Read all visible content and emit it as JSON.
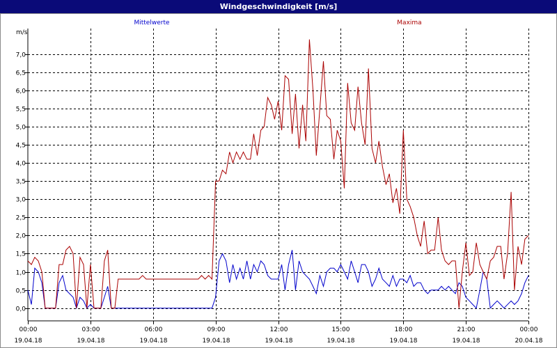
{
  "window": {
    "title": "Windgeschwindigkeit [m/s]"
  },
  "chart_data": {
    "type": "line",
    "ylabel": "m/s",
    "ylim": [
      -0.35,
      7.7
    ],
    "yticks": [
      "0,0",
      "0,5",
      "1,0",
      "1,5",
      "2,0",
      "2,5",
      "3,0",
      "3,5",
      "4,0",
      "4,5",
      "5,0",
      "5,5",
      "6,0",
      "6,5",
      "7,0"
    ],
    "xlim": [
      0,
      24
    ],
    "xticks": [
      {
        "time": "00:00",
        "date": "19.04.18"
      },
      {
        "time": "03:00",
        "date": "19.04.18"
      },
      {
        "time": "06:00",
        "date": "19.04.18"
      },
      {
        "time": "09:00",
        "date": "19.04.18"
      },
      {
        "time": "12:00",
        "date": "19.04.18"
      },
      {
        "time": "15:00",
        "date": "19.04.18"
      },
      {
        "time": "18:00",
        "date": "19.04.18"
      },
      {
        "time": "21:00",
        "date": "19.04.18"
      },
      {
        "time": "00:00",
        "date": "20.04.18"
      }
    ],
    "grid": true,
    "series": [
      {
        "name": "Mittelwerte",
        "color": "#0000cc",
        "points": [
          [
            0,
            0.5
          ],
          [
            0.17,
            0.1
          ],
          [
            0.33,
            1.1
          ],
          [
            0.5,
            1.0
          ],
          [
            0.67,
            0.7
          ],
          [
            0.83,
            0
          ],
          [
            1.33,
            0
          ],
          [
            1.5,
            0.7
          ],
          [
            1.67,
            0.9
          ],
          [
            1.83,
            0.5
          ],
          [
            2.17,
            0.3
          ],
          [
            2.33,
            0
          ],
          [
            2.5,
            0.3
          ],
          [
            2.67,
            0.2
          ],
          [
            2.83,
            0
          ],
          [
            3,
            0.1
          ],
          [
            3.17,
            0
          ],
          [
            3.5,
            0
          ],
          [
            3.67,
            0.3
          ],
          [
            3.83,
            0.6
          ],
          [
            4,
            0
          ],
          [
            4.17,
            0
          ],
          [
            8.83,
            0
          ],
          [
            9,
            0.3
          ],
          [
            9.17,
            1.3
          ],
          [
            9.33,
            1.5
          ],
          [
            9.5,
            1.3
          ],
          [
            9.67,
            0.7
          ],
          [
            9.83,
            1.2
          ],
          [
            10,
            0.8
          ],
          [
            10.17,
            1.1
          ],
          [
            10.33,
            0.8
          ],
          [
            10.5,
            1.3
          ],
          [
            10.67,
            0.8
          ],
          [
            10.83,
            1.2
          ],
          [
            11,
            1.0
          ],
          [
            11.17,
            1.3
          ],
          [
            11.33,
            1.2
          ],
          [
            11.5,
            0.9
          ],
          [
            11.67,
            0.8
          ],
          [
            12,
            0.8
          ],
          [
            12.17,
            1.2
          ],
          [
            12.33,
            0.5
          ],
          [
            12.5,
            1.2
          ],
          [
            12.67,
            1.6
          ],
          [
            12.83,
            0.5
          ],
          [
            13,
            1.3
          ],
          [
            13.17,
            1.0
          ],
          [
            13.33,
            0.9
          ],
          [
            13.5,
            0.8
          ],
          [
            13.67,
            0.6
          ],
          [
            13.83,
            0.4
          ],
          [
            14,
            0.9
          ],
          [
            14.17,
            0.6
          ],
          [
            14.33,
            1.0
          ],
          [
            14.5,
            1.1
          ],
          [
            14.67,
            1.1
          ],
          [
            14.83,
            1.0
          ],
          [
            15,
            1.2
          ],
          [
            15.17,
            1.0
          ],
          [
            15.33,
            0.8
          ],
          [
            15.5,
            1.3
          ],
          [
            15.67,
            1.0
          ],
          [
            15.83,
            0.7
          ],
          [
            16,
            1.2
          ],
          [
            16.17,
            1.2
          ],
          [
            16.33,
            1.0
          ],
          [
            16.5,
            0.6
          ],
          [
            16.67,
            0.8
          ],
          [
            16.83,
            1.1
          ],
          [
            17,
            0.8
          ],
          [
            17.17,
            0.7
          ],
          [
            17.33,
            0.6
          ],
          [
            17.5,
            0.9
          ],
          [
            17.67,
            0.6
          ],
          [
            17.83,
            0.8
          ],
          [
            18,
            0.8
          ],
          [
            18.17,
            0.7
          ],
          [
            18.33,
            0.9
          ],
          [
            18.5,
            0.6
          ],
          [
            18.67,
            0.7
          ],
          [
            18.83,
            0.7
          ],
          [
            19,
            0.5
          ],
          [
            19.17,
            0.4
          ],
          [
            19.33,
            0.5
          ],
          [
            19.5,
            0.5
          ],
          [
            19.67,
            0.5
          ],
          [
            19.83,
            0.6
          ],
          [
            20,
            0.5
          ],
          [
            20.17,
            0.6
          ],
          [
            20.33,
            0.5
          ],
          [
            20.5,
            0.4
          ],
          [
            20.67,
            0.7
          ],
          [
            20.83,
            0.6
          ],
          [
            21,
            0.3
          ],
          [
            21.17,
            0.2
          ],
          [
            21.33,
            0.1
          ],
          [
            21.5,
            0
          ],
          [
            21.67,
            0.5
          ],
          [
            21.83,
            1.0
          ],
          [
            22,
            0.8
          ],
          [
            22.17,
            0
          ],
          [
            22.33,
            0.1
          ],
          [
            22.5,
            0.2
          ],
          [
            22.67,
            0.1
          ],
          [
            22.83,
            0
          ],
          [
            23.17,
            0.2
          ],
          [
            23.33,
            0.1
          ],
          [
            23.5,
            0.2
          ],
          [
            23.67,
            0.4
          ],
          [
            23.83,
            0.7
          ],
          [
            24,
            0.9
          ]
        ]
      },
      {
        "name": "Maxima",
        "color": "#aa0000",
        "points": [
          [
            0,
            1.3
          ],
          [
            0.17,
            1.2
          ],
          [
            0.33,
            1.4
          ],
          [
            0.5,
            1.3
          ],
          [
            0.67,
            1.0
          ],
          [
            0.83,
            0
          ],
          [
            1.33,
            0
          ],
          [
            1.5,
            1.2
          ],
          [
            1.67,
            1.2
          ],
          [
            1.83,
            1.6
          ],
          [
            2,
            1.7
          ],
          [
            2.17,
            1.5
          ],
          [
            2.33,
            0
          ],
          [
            2.5,
            1.4
          ],
          [
            2.67,
            1.2
          ],
          [
            2.83,
            0
          ],
          [
            3,
            1.2
          ],
          [
            3.17,
            0
          ],
          [
            3.5,
            0
          ],
          [
            3.67,
            1.3
          ],
          [
            3.83,
            1.6
          ],
          [
            4,
            0
          ],
          [
            4.17,
            0
          ],
          [
            4.33,
            0.8
          ],
          [
            5.33,
            0.8
          ],
          [
            5.5,
            0.9
          ],
          [
            5.67,
            0.8
          ],
          [
            8.17,
            0.8
          ],
          [
            8.33,
            0.9
          ],
          [
            8.5,
            0.8
          ],
          [
            8.67,
            0.9
          ],
          [
            8.83,
            0.8
          ],
          [
            9,
            3.5
          ],
          [
            9.17,
            3.5
          ],
          [
            9.33,
            3.8
          ],
          [
            9.5,
            3.7
          ],
          [
            9.67,
            4.3
          ],
          [
            9.83,
            4.0
          ],
          [
            10,
            4.3
          ],
          [
            10.17,
            4.1
          ],
          [
            10.33,
            4.3
          ],
          [
            10.5,
            4.1
          ],
          [
            10.67,
            4.1
          ],
          [
            10.83,
            4.8
          ],
          [
            11,
            4.2
          ],
          [
            11.17,
            4.9
          ],
          [
            11.33,
            5.0
          ],
          [
            11.5,
            5.8
          ],
          [
            11.67,
            5.6
          ],
          [
            11.83,
            5.2
          ],
          [
            12,
            5.7
          ],
          [
            12.17,
            4.9
          ],
          [
            12.33,
            6.4
          ],
          [
            12.5,
            6.3
          ],
          [
            12.67,
            4.8
          ],
          [
            12.83,
            5.9
          ],
          [
            13,
            4.4
          ],
          [
            13.17,
            5.6
          ],
          [
            13.33,
            4.6
          ],
          [
            13.5,
            7.4
          ],
          [
            13.67,
            6.0
          ],
          [
            13.83,
            4.2
          ],
          [
            14,
            5.5
          ],
          [
            14.17,
            6.8
          ],
          [
            14.33,
            5.3
          ],
          [
            14.5,
            5.2
          ],
          [
            14.67,
            4.1
          ],
          [
            14.83,
            4.9
          ],
          [
            15,
            4.6
          ],
          [
            15.17,
            3.3
          ],
          [
            15.33,
            6.2
          ],
          [
            15.5,
            5.1
          ],
          [
            15.67,
            4.9
          ],
          [
            15.83,
            6.1
          ],
          [
            16,
            5.1
          ],
          [
            16.17,
            4.5
          ],
          [
            16.33,
            6.6
          ],
          [
            16.5,
            4.4
          ],
          [
            16.67,
            4.0
          ],
          [
            16.83,
            4.6
          ],
          [
            17,
            3.9
          ],
          [
            17.17,
            3.4
          ],
          [
            17.33,
            3.7
          ],
          [
            17.5,
            2.9
          ],
          [
            17.67,
            3.3
          ],
          [
            17.83,
            2.6
          ],
          [
            18,
            4.9
          ],
          [
            18.17,
            3.0
          ],
          [
            18.33,
            2.8
          ],
          [
            18.5,
            2.5
          ],
          [
            18.67,
            2.0
          ],
          [
            18.83,
            1.7
          ],
          [
            19,
            2.4
          ],
          [
            19.17,
            1.5
          ],
          [
            19.33,
            1.6
          ],
          [
            19.5,
            1.6
          ],
          [
            19.67,
            2.5
          ],
          [
            19.83,
            1.6
          ],
          [
            20,
            1.3
          ],
          [
            20.17,
            1.2
          ],
          [
            20.33,
            1.3
          ],
          [
            20.5,
            1.3
          ],
          [
            20.67,
            0
          ],
          [
            20.83,
            1.0
          ],
          [
            21,
            1.8
          ],
          [
            21.17,
            0.9
          ],
          [
            21.33,
            1.0
          ],
          [
            21.5,
            1.8
          ],
          [
            21.67,
            1.2
          ],
          [
            21.83,
            1.0
          ],
          [
            22,
            0.8
          ],
          [
            22.17,
            1.3
          ],
          [
            22.33,
            1.4
          ],
          [
            22.5,
            1.7
          ],
          [
            22.67,
            1.7
          ],
          [
            22.83,
            0.8
          ],
          [
            23,
            1.5
          ],
          [
            23.17,
            3.2
          ],
          [
            23.33,
            0.5
          ],
          [
            23.5,
            1.7
          ],
          [
            23.67,
            1.2
          ],
          [
            23.83,
            1.9
          ],
          [
            24,
            2.0
          ]
        ]
      }
    ]
  }
}
